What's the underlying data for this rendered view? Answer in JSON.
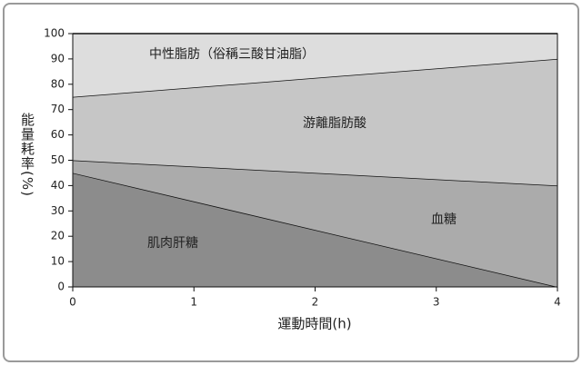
{
  "chart_data": {
    "type": "stacked-area",
    "x": [
      0,
      4
    ],
    "series": [
      {
        "name": "肌肉肝糖",
        "color": "#8c8c8c",
        "values": [
          45,
          0
        ]
      },
      {
        "name": "血糖",
        "color": "#ababab",
        "values": [
          5,
          40
        ]
      },
      {
        "name": "游離脂肪酸",
        "color": "#c6c6c6",
        "values": [
          25,
          50
        ]
      },
      {
        "name": "中性脂肪（俗稱三酸甘油脂）",
        "color": "#dddddd",
        "values": [
          25,
          10
        ]
      }
    ],
    "xlabel": "運動時間(h)",
    "ylabel": "能量耗率(%)",
    "xlim": [
      0,
      4
    ],
    "xticks": [
      0,
      1,
      2,
      3,
      4
    ],
    "ylim": [
      0,
      100
    ],
    "yticks": [
      0,
      10,
      20,
      30,
      40,
      50,
      60,
      70,
      80,
      90,
      100
    ],
    "grid": false
  }
}
